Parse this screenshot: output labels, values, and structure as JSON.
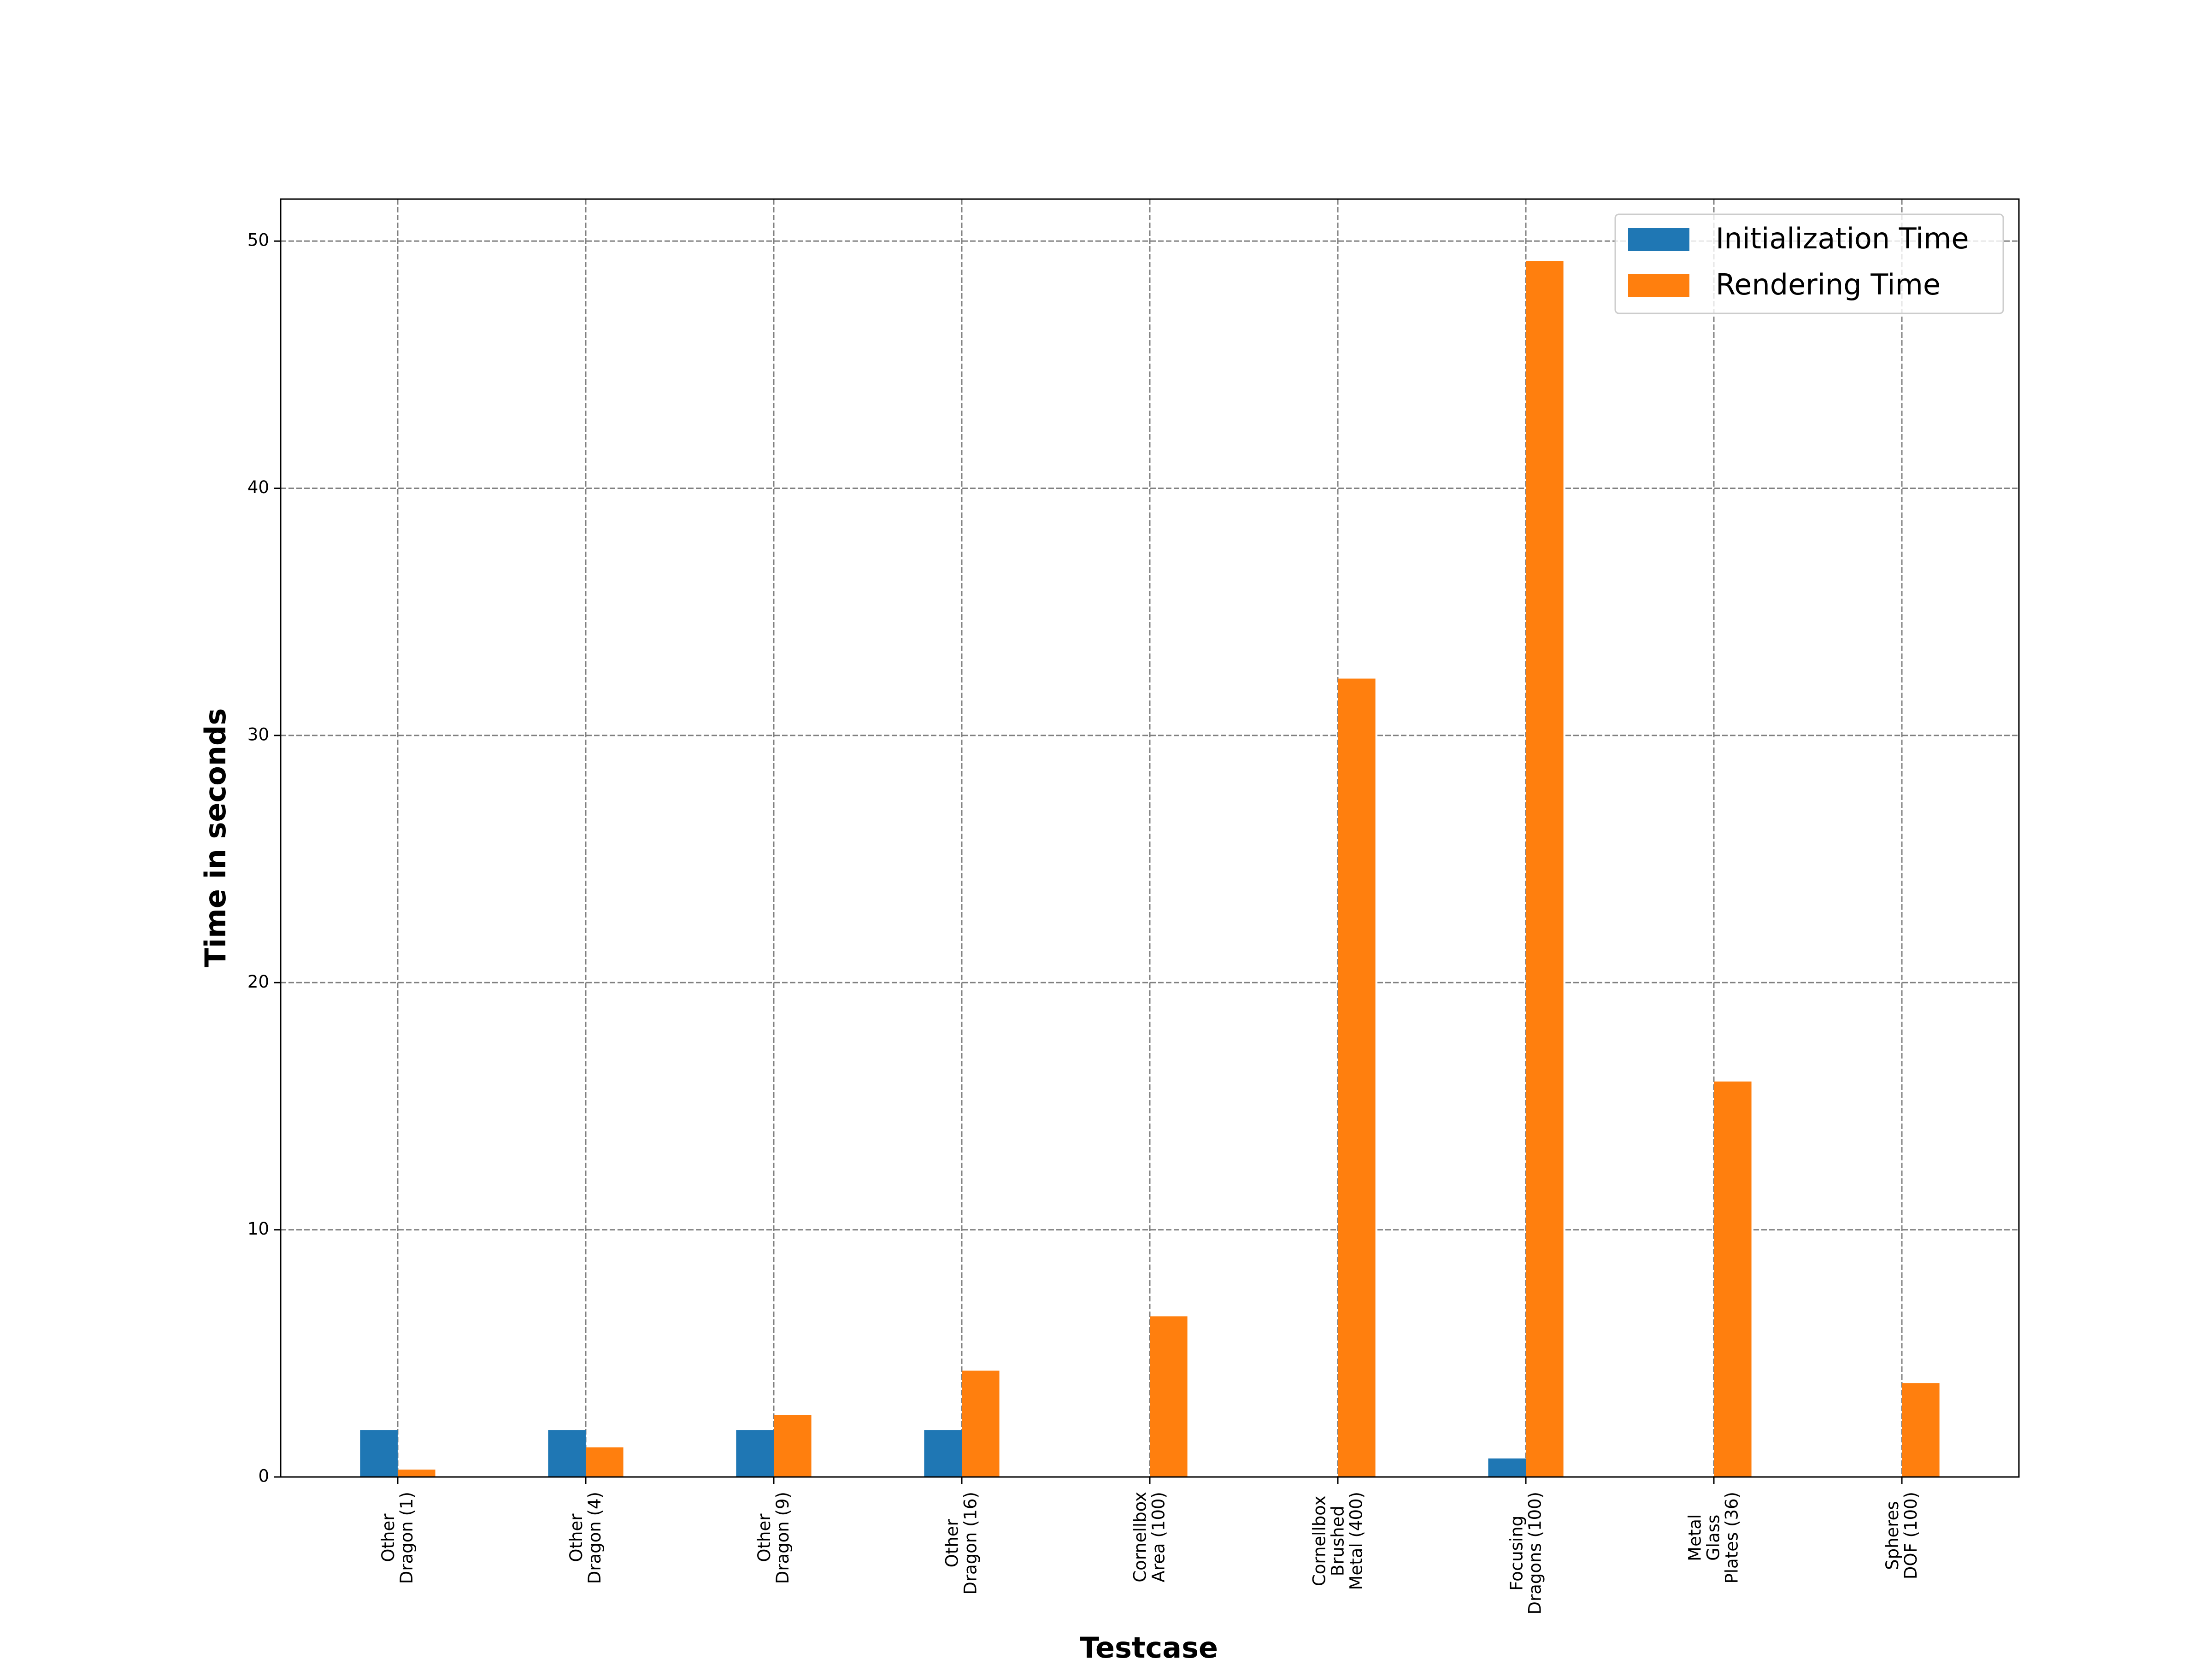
{
  "chart_data": {
    "type": "bar",
    "x_label": "Testcase",
    "y_label": "Time in seconds",
    "categories": [
      "Other\nDragon (1)",
      "Other\nDragon (4)",
      "Other\nDragon (9)",
      "Other\nDragon (16)",
      "Cornellbox\nArea (100)",
      "Cornellbox\nBrushed\nMetal (400)",
      "Focusing\nDragons (100)",
      "Metal\nGlass\nPlates (36)",
      "Spheres\nDOF (100)"
    ],
    "series": [
      {
        "name": "Initialization Time",
        "color": "#1f77b4",
        "values": [
          1.9,
          1.9,
          1.9,
          1.9,
          0,
          0,
          0.75,
          0,
          0
        ]
      },
      {
        "name": "Rendering Time",
        "color": "#ff7f0e",
        "values": [
          0.3,
          1.2,
          2.5,
          4.3,
          6.5,
          32.3,
          49.2,
          16.0,
          3.8
        ]
      }
    ],
    "ylim": [
      0,
      51.7
    ],
    "yticks": [
      0,
      10,
      20,
      30,
      40,
      50
    ],
    "grid": true,
    "legend": "upper-right"
  }
}
